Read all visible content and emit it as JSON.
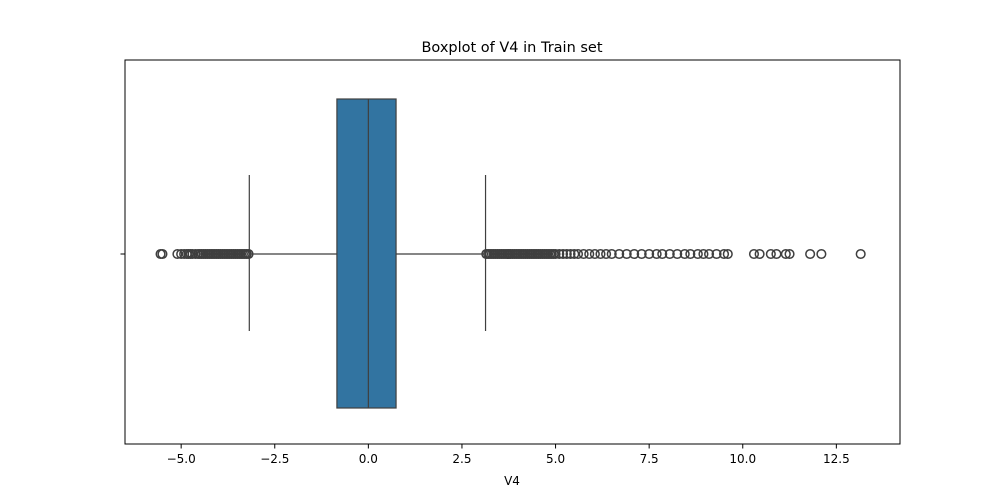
{
  "chart_data": {
    "type": "boxplot",
    "orientation": "horizontal",
    "title": "Boxplot of V4 in Train set",
    "xlabel": "V4",
    "ylabel": "",
    "xlim": [
      -6.5,
      14.2
    ],
    "xticks": [
      -5.0,
      -2.5,
      0.0,
      2.5,
      5.0,
      7.5,
      10.0,
      12.5
    ],
    "xtick_labels": [
      "−5.0",
      "−2.5",
      "0.0",
      "2.5",
      "5.0",
      "7.5",
      "10.0",
      "12.5"
    ],
    "grid": false,
    "legend": "none",
    "box": {
      "q1": -0.84,
      "median": 0.0,
      "q3": 0.74,
      "whisker_low": -3.18,
      "whisker_high": 3.13,
      "color": "#3274a1",
      "edge_color": "#3f3f3f"
    },
    "outliers_low": [
      -5.55,
      -5.5,
      -5.1,
      -5.0,
      -4.92,
      -4.85,
      -4.8,
      -4.75,
      -4.7,
      -4.62,
      -4.55,
      -4.5,
      -4.45,
      -4.4,
      -4.35,
      -4.3,
      -4.25,
      -4.2,
      -4.15,
      -4.1,
      -4.05,
      -4.0,
      -3.95,
      -3.9,
      -3.85,
      -3.8,
      -3.75,
      -3.7,
      -3.65,
      -3.6,
      -3.55,
      -3.5,
      -3.45,
      -3.4,
      -3.35,
      -3.3,
      -3.25,
      -3.2
    ],
    "outliers_high": [
      3.15,
      3.2,
      3.25,
      3.3,
      3.35,
      3.4,
      3.45,
      3.5,
      3.55,
      3.6,
      3.65,
      3.7,
      3.75,
      3.8,
      3.85,
      3.9,
      3.95,
      4.0,
      4.05,
      4.1,
      4.15,
      4.2,
      4.25,
      4.3,
      4.35,
      4.4,
      4.45,
      4.5,
      4.55,
      4.6,
      4.65,
      4.7,
      4.75,
      4.8,
      4.85,
      4.9,
      4.95,
      5.0,
      5.1,
      5.2,
      5.3,
      5.4,
      5.5,
      5.6,
      5.75,
      5.9,
      6.05,
      6.2,
      6.35,
      6.5,
      6.7,
      6.9,
      7.1,
      7.3,
      7.5,
      7.7,
      7.85,
      8.05,
      8.25,
      8.45,
      8.6,
      8.8,
      8.95,
      9.1,
      9.3,
      9.5,
      9.6,
      10.3,
      10.45,
      10.75,
      10.9,
      11.15,
      11.25,
      11.8,
      12.1,
      13.15
    ],
    "outlier_color": "#3f3f3f"
  }
}
